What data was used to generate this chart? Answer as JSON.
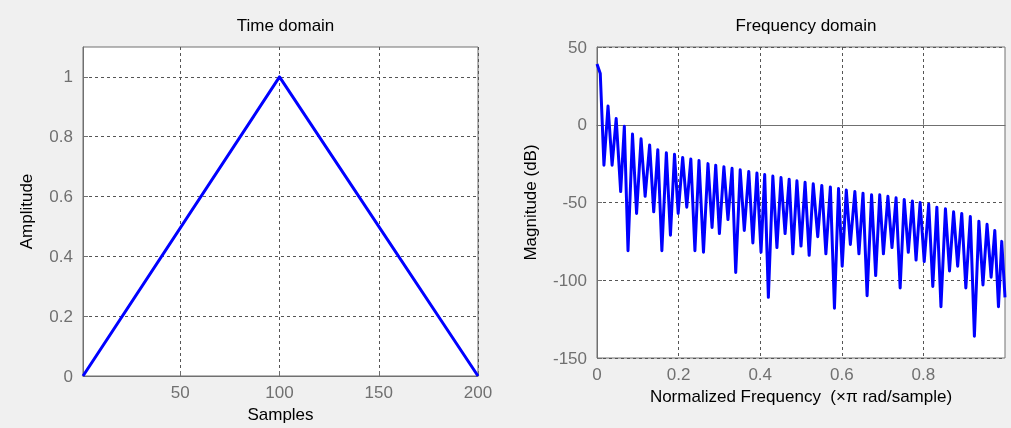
{
  "chart_data": [
    {
      "type": "line",
      "title": "Time domain",
      "xlabel": "Samples",
      "ylabel": "Amplitude",
      "xlim": [
        1,
        200
      ],
      "xticks": [
        50,
        100,
        150,
        200
      ],
      "ylim": [
        0,
        1.1
      ],
      "yticks": [
        0,
        0.2,
        0.4,
        0.6,
        0.8,
        1
      ],
      "grid": true,
      "marker": "none",
      "series": [
        {
          "color": "#0000ff",
          "x": [
            1,
            100,
            200
          ],
          "values": [
            0,
            1,
            0
          ]
        }
      ]
    },
    {
      "type": "line",
      "title": "Frequency domain",
      "xlabel": "Normalized Frequency  (×π rad/sample)",
      "ylabel": "Magnitude (dB)",
      "xlim": [
        0,
        1
      ],
      "xticks": [
        0,
        0.2,
        0.4,
        0.6,
        0.8
      ],
      "ylim": [
        -150,
        50
      ],
      "yticks": [
        -150,
        -100,
        -50,
        0,
        50
      ],
      "grid": true,
      "marker": "none",
      "series": [
        {
          "color": "#0000ff",
          "x": [
            0,
            0.008,
            0.017,
            0.027,
            0.037,
            0.047,
            0.058,
            0.067,
            0.076,
            0.087,
            0.097,
            0.108,
            0.118,
            0.129,
            0.139,
            0.149,
            0.159,
            0.17,
            0.18,
            0.19,
            0.199,
            0.21,
            0.22,
            0.23,
            0.24,
            0.25,
            0.261,
            0.272,
            0.282,
            0.291,
            0.3,
            0.311,
            0.321,
            0.331,
            0.34,
            0.351,
            0.361,
            0.372,
            0.382,
            0.392,
            0.402,
            0.411,
            0.42,
            0.431,
            0.441,
            0.451,
            0.461,
            0.471,
            0.48,
            0.49,
            0.5,
            0.51,
            0.52,
            0.53,
            0.541,
            0.551,
            0.561,
            0.572,
            0.582,
            0.592,
            0.601,
            0.611,
            0.621,
            0.632,
            0.642,
            0.652,
            0.662,
            0.673,
            0.683,
            0.693,
            0.702,
            0.713,
            0.723,
            0.733,
            0.743,
            0.753,
            0.763,
            0.773,
            0.782,
            0.792,
            0.802,
            0.813,
            0.823,
            0.833,
            0.843,
            0.854,
            0.864,
            0.874,
            0.884,
            0.894,
            0.904,
            0.915,
            0.925,
            0.936,
            0.946,
            0.956,
            0.966,
            0.975,
            0.984,
            0.992,
            1
          ],
          "values": [
            39,
            33,
            -26,
            12,
            -26,
            4,
            -43,
            -1,
            -81,
            -6,
            -57,
            -9,
            -46,
            -13,
            -56,
            -16,
            -81,
            -18,
            -71,
            -19,
            -57,
            -21,
            -53,
            -22,
            -81,
            -23,
            -82,
            -25,
            -66,
            -26,
            -70,
            -27,
            -61,
            -28,
            -95,
            -29,
            -68,
            -30,
            -76,
            -31,
            -82,
            -32,
            -111,
            -33,
            -79,
            -34,
            -70,
            -35,
            -83,
            -36,
            -78,
            -37,
            -84,
            -38,
            -72,
            -39,
            -83,
            -40,
            -118,
            -41,
            -91,
            -42,
            -77,
            -43,
            -83,
            -44,
            -110,
            -45,
            -97,
            -45,
            -83,
            -46,
            -79,
            -47,
            -105,
            -48,
            -82,
            -49,
            -87,
            -50,
            -88,
            -51,
            -104,
            -53,
            -117,
            -54,
            -94,
            -56,
            -91,
            -57,
            -105,
            -59,
            -136,
            -62,
            -103,
            -64,
            -98,
            -68,
            -117,
            -75,
            -111
          ]
        }
      ]
    }
  ]
}
